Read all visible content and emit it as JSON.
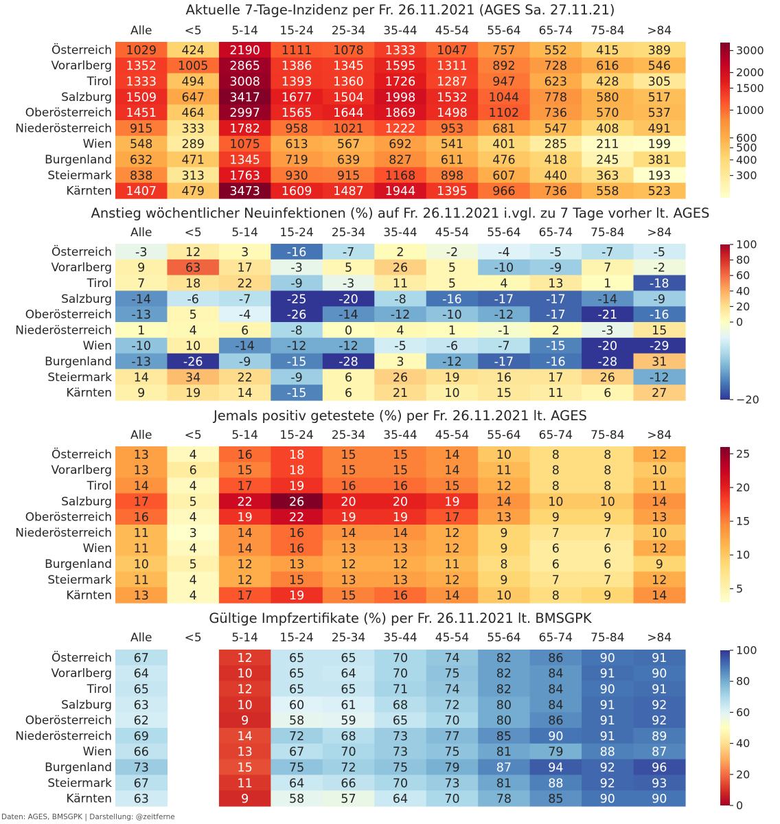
{
  "footer": "Daten: AGES, BMSGPK | Darstellung: @zeitferne",
  "chart_data": [
    {
      "type": "heatmap",
      "title": "Aktuelle 7-Tage-Inzidenz per Fr. 26.11.2021 (AGES Sa. 27.11.21)",
      "columns": [
        "Alle",
        "<5",
        "5-14",
        "15-24",
        "25-34",
        "35-44",
        "45-54",
        "55-64",
        "65-74",
        "75-84",
        ">84"
      ],
      "show_column_labels": true,
      "rows": [
        "Österreich",
        "Vorarlberg",
        "Tirol",
        "Salzburg",
        "Oberösterreich",
        "Niederösterreich",
        "Wien",
        "Burgenland",
        "Steiermark",
        "Kärnten"
      ],
      "values": [
        [
          1029,
          424,
          2190,
          1111,
          1078,
          1333,
          1047,
          757,
          552,
          415,
          389
        ],
        [
          1352,
          1005,
          2865,
          1386,
          1345,
          1595,
          1311,
          892,
          728,
          616,
          546
        ],
        [
          1333,
          494,
          3008,
          1393,
          1360,
          1726,
          1287,
          947,
          623,
          428,
          305
        ],
        [
          1509,
          647,
          3417,
          1677,
          1504,
          1998,
          1532,
          1044,
          778,
          580,
          517
        ],
        [
          1451,
          464,
          2997,
          1565,
          1644,
          1869,
          1498,
          1102,
          736,
          570,
          537
        ],
        [
          915,
          333,
          1782,
          958,
          1021,
          1222,
          953,
          681,
          547,
          408,
          491
        ],
        [
          548,
          289,
          1075,
          613,
          567,
          692,
          541,
          401,
          285,
          211,
          199
        ],
        [
          632,
          471,
          1345,
          719,
          639,
          827,
          611,
          476,
          418,
          245,
          381
        ],
        [
          838,
          313,
          1763,
          930,
          915,
          1168,
          898,
          607,
          440,
          363,
          193
        ],
        [
          1407,
          479,
          3473,
          1609,
          1487,
          1944,
          1395,
          966,
          736,
          558,
          523
        ]
      ],
      "colormap": "YlOrRd",
      "color_scale": "log",
      "vmin": 199,
      "vmax": 3473,
      "colorbar_ticks": [
        300,
        400,
        500,
        600,
        1000,
        1500,
        2000,
        3000
      ],
      "colorbar_tick_labels": [
        "300",
        "400",
        "500",
        "600",
        "1000",
        "1500",
        "2000",
        "3000"
      ]
    },
    {
      "type": "heatmap",
      "title": "Anstieg wöchentlicher Neuinfektionen (%) auf Fr. 26.11.2021 i.vgl. zu 7 Tage vorher lt. AGES",
      "columns": [
        "Alle",
        "<5",
        "5-14",
        "15-24",
        "25-34",
        "35-44",
        "45-54",
        "55-64",
        "65-74",
        "75-84",
        ">84"
      ],
      "show_column_labels": true,
      "rows": [
        "Österreich",
        "Vorarlberg",
        "Tirol",
        "Salzburg",
        "Oberösterreich",
        "Niederösterreich",
        "Wien",
        "Burgenland",
        "Steiermark",
        "Kärnten"
      ],
      "values": [
        [
          -3,
          12,
          3,
          -16,
          -7,
          2,
          -2,
          -4,
          -5,
          -7,
          -5
        ],
        [
          9,
          63,
          17,
          -3,
          5,
          26,
          5,
          -10,
          -9,
          7,
          -2
        ],
        [
          7,
          18,
          22,
          -9,
          -3,
          11,
          5,
          4,
          13,
          1,
          -18
        ],
        [
          -14,
          -6,
          -7,
          -25,
          -20,
          -8,
          -16,
          -17,
          -17,
          -14,
          -9
        ],
        [
          -13,
          5,
          -4,
          -26,
          -14,
          -12,
          -10,
          -12,
          -17,
          -21,
          -16
        ],
        [
          1,
          4,
          6,
          -8,
          0,
          4,
          1,
          -1,
          2,
          -3,
          15
        ],
        [
          -10,
          10,
          -14,
          -12,
          -12,
          -5,
          -6,
          -7,
          -15,
          -20,
          -29
        ],
        [
          -13,
          -26,
          -9,
          -15,
          -28,
          3,
          -12,
          -17,
          -16,
          -28,
          31
        ],
        [
          14,
          34,
          22,
          -9,
          6,
          26,
          19,
          16,
          17,
          26,
          -12
        ],
        [
          9,
          19,
          14,
          -15,
          6,
          21,
          10,
          15,
          11,
          6,
          27
        ]
      ],
      "colormap": "RdYlBu_r",
      "color_scale": "diverging",
      "center": 0,
      "vmin": -20,
      "vmax": 100,
      "colorbar_ticks": [
        -20,
        0,
        20,
        40,
        60,
        80,
        100
      ],
      "colorbar_tick_labels": [
        "−20",
        "0",
        "20",
        "40",
        "60",
        "80",
        "100"
      ]
    },
    {
      "type": "heatmap",
      "title": "Jemals positiv getestete (%) per Fr. 26.11.2021 lt. AGES",
      "columns": [
        "Alle",
        "<5",
        "5-14",
        "15-24",
        "25-34",
        "35-44",
        "45-54",
        "55-64",
        "65-74",
        "75-84",
        ">84"
      ],
      "show_column_labels": true,
      "rows": [
        "Österreich",
        "Vorarlberg",
        "Tirol",
        "Salzburg",
        "Oberösterreich",
        "Niederösterreich",
        "Wien",
        "Burgenland",
        "Steiermark",
        "Kärnten"
      ],
      "values": [
        [
          13,
          4,
          16,
          18,
          15,
          15,
          14,
          10,
          8,
          8,
          12
        ],
        [
          13,
          6,
          15,
          18,
          15,
          15,
          14,
          11,
          8,
          8,
          10
        ],
        [
          14,
          4,
          17,
          19,
          16,
          16,
          15,
          12,
          8,
          8,
          11
        ],
        [
          17,
          5,
          22,
          26,
          20,
          20,
          19,
          14,
          10,
          10,
          14
        ],
        [
          16,
          4,
          19,
          22,
          19,
          19,
          17,
          13,
          9,
          9,
          13
        ],
        [
          11,
          3,
          14,
          16,
          14,
          14,
          12,
          9,
          7,
          7,
          10
        ],
        [
          11,
          4,
          14,
          16,
          13,
          13,
          12,
          9,
          6,
          6,
          12
        ],
        [
          10,
          5,
          12,
          13,
          12,
          12,
          11,
          8,
          6,
          6,
          9
        ],
        [
          11,
          4,
          12,
          15,
          13,
          13,
          12,
          9,
          7,
          7,
          12
        ],
        [
          13,
          4,
          17,
          19,
          15,
          16,
          14,
          10,
          8,
          9,
          14
        ]
      ],
      "colormap": "YlOrRd",
      "color_scale": "linear",
      "vmin": 3,
      "vmax": 26,
      "colorbar_ticks": [
        5,
        10,
        15,
        20,
        25
      ],
      "colorbar_tick_labels": [
        "5",
        "10",
        "15",
        "20",
        "25"
      ]
    },
    {
      "type": "heatmap",
      "title": "Gültige Impfzertifikate (%) per Fr. 26.11.2021 lt. BMSGPK",
      "columns": [
        "Alle",
        "<5",
        "5-14",
        "15-24",
        "25-34",
        "35-44",
        "45-54",
        "55-64",
        "65-74",
        "75-84",
        ">84"
      ],
      "show_column_labels": true,
      "rows": [
        "Österreich",
        "Vorarlberg",
        "Tirol",
        "Salzburg",
        "Oberösterreich",
        "Niederösterreich",
        "Wien",
        "Burgenland",
        "Steiermark",
        "Kärnten"
      ],
      "values": [
        [
          67,
          null,
          12,
          65,
          65,
          70,
          74,
          82,
          86,
          90,
          91
        ],
        [
          64,
          null,
          10,
          65,
          64,
          70,
          75,
          82,
          84,
          91,
          90
        ],
        [
          65,
          null,
          12,
          65,
          65,
          71,
          74,
          82,
          84,
          90,
          91
        ],
        [
          63,
          null,
          10,
          60,
          61,
          68,
          72,
          80,
          84,
          91,
          92
        ],
        [
          62,
          null,
          9,
          58,
          59,
          65,
          70,
          80,
          86,
          91,
          92
        ],
        [
          69,
          null,
          14,
          72,
          68,
          73,
          77,
          85,
          90,
          91,
          89
        ],
        [
          66,
          null,
          13,
          67,
          70,
          73,
          75,
          81,
          79,
          88,
          87
        ],
        [
          73,
          null,
          15,
          75,
          72,
          75,
          79,
          87,
          94,
          92,
          96
        ],
        [
          67,
          null,
          11,
          64,
          66,
          70,
          73,
          81,
          88,
          92,
          93
        ],
        [
          63,
          null,
          9,
          58,
          57,
          64,
          70,
          78,
          85,
          90,
          90
        ]
      ],
      "colormap": "RdYlBu",
      "color_scale": "linear",
      "vmin": 0,
      "vmax": 100,
      "colorbar_ticks": [
        0,
        20,
        40,
        60,
        80,
        100
      ],
      "colorbar_tick_labels": [
        "0",
        "20",
        "40",
        "60",
        "80",
        "100"
      ]
    }
  ]
}
